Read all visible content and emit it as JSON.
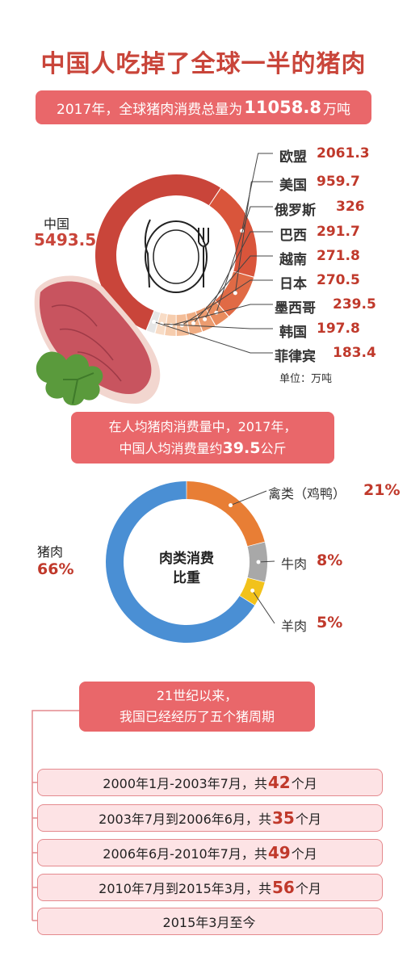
{
  "title": "中国人吃掉了全球一半的猪肉",
  "subtitle": {
    "prefix": "2017年，全球猪肉消费总量为",
    "value": "11058.8",
    "suffix": "万吨"
  },
  "unit_note": "单位：万吨",
  "per_capita": {
    "line1": "在人均猪肉消费量中，2017年，",
    "line2_prefix": "中国人均消费量约",
    "value": "39.5",
    "line2_suffix": "公斤"
  },
  "donut2_center": {
    "line1": "肉类消费",
    "line2": "比重"
  },
  "cycles_banner": {
    "line1": "21世纪以来，",
    "line2": "我国已经经历了五个猪周期"
  },
  "cycles": [
    {
      "prefix": "2000年1月-2003年7月，共",
      "months": "42",
      "suffix": "个月"
    },
    {
      "prefix": "2003年7月到2006年6月，共",
      "months": "35",
      "suffix": "个月"
    },
    {
      "prefix": "2006年6月-2010年7月，共",
      "months": "49",
      "suffix": "个月"
    },
    {
      "prefix": "2010年7月到2015年3月，共",
      "months": "56",
      "suffix": "个月"
    },
    {
      "prefix": "2015年3月至今",
      "months": "",
      "suffix": ""
    }
  ],
  "colors": {
    "accent": "#c9453a",
    "banner": "#e9676a",
    "blue": "#4a8fd4",
    "orange": "#e87e35",
    "gray": "#a8a8a8",
    "yellow": "#f2c21b"
  },
  "icons": [
    "plate-icon",
    "fork-icon",
    "knife-icon",
    "meat-icon",
    "parsley-icon"
  ],
  "chart_data": [
    {
      "type": "pie",
      "categories": [
        "中国",
        "欧盟",
        "美国",
        "俄罗斯",
        "巴西",
        "越南",
        "日本",
        "墨西哥",
        "韩国",
        "菲律宾"
      ],
      "values": [
        5493.5,
        2061.3,
        959.7,
        326,
        291.7,
        271.8,
        270.5,
        239.5,
        197.8,
        183.4
      ],
      "labels": [
        "5493.5",
        "2061.3",
        "959.7",
        "326",
        "291.7",
        "271.8",
        "270.5",
        "239.5",
        "197.8",
        "183.4"
      ],
      "total": 11058.8
    },
    {
      "type": "pie",
      "categories": [
        "猪肉",
        "禽类（鸡鸭）",
        "牛肉",
        "羊肉"
      ],
      "values": [
        66,
        21,
        8,
        5
      ],
      "labels": [
        "66%",
        "21%",
        "8%",
        "5%"
      ]
    }
  ]
}
